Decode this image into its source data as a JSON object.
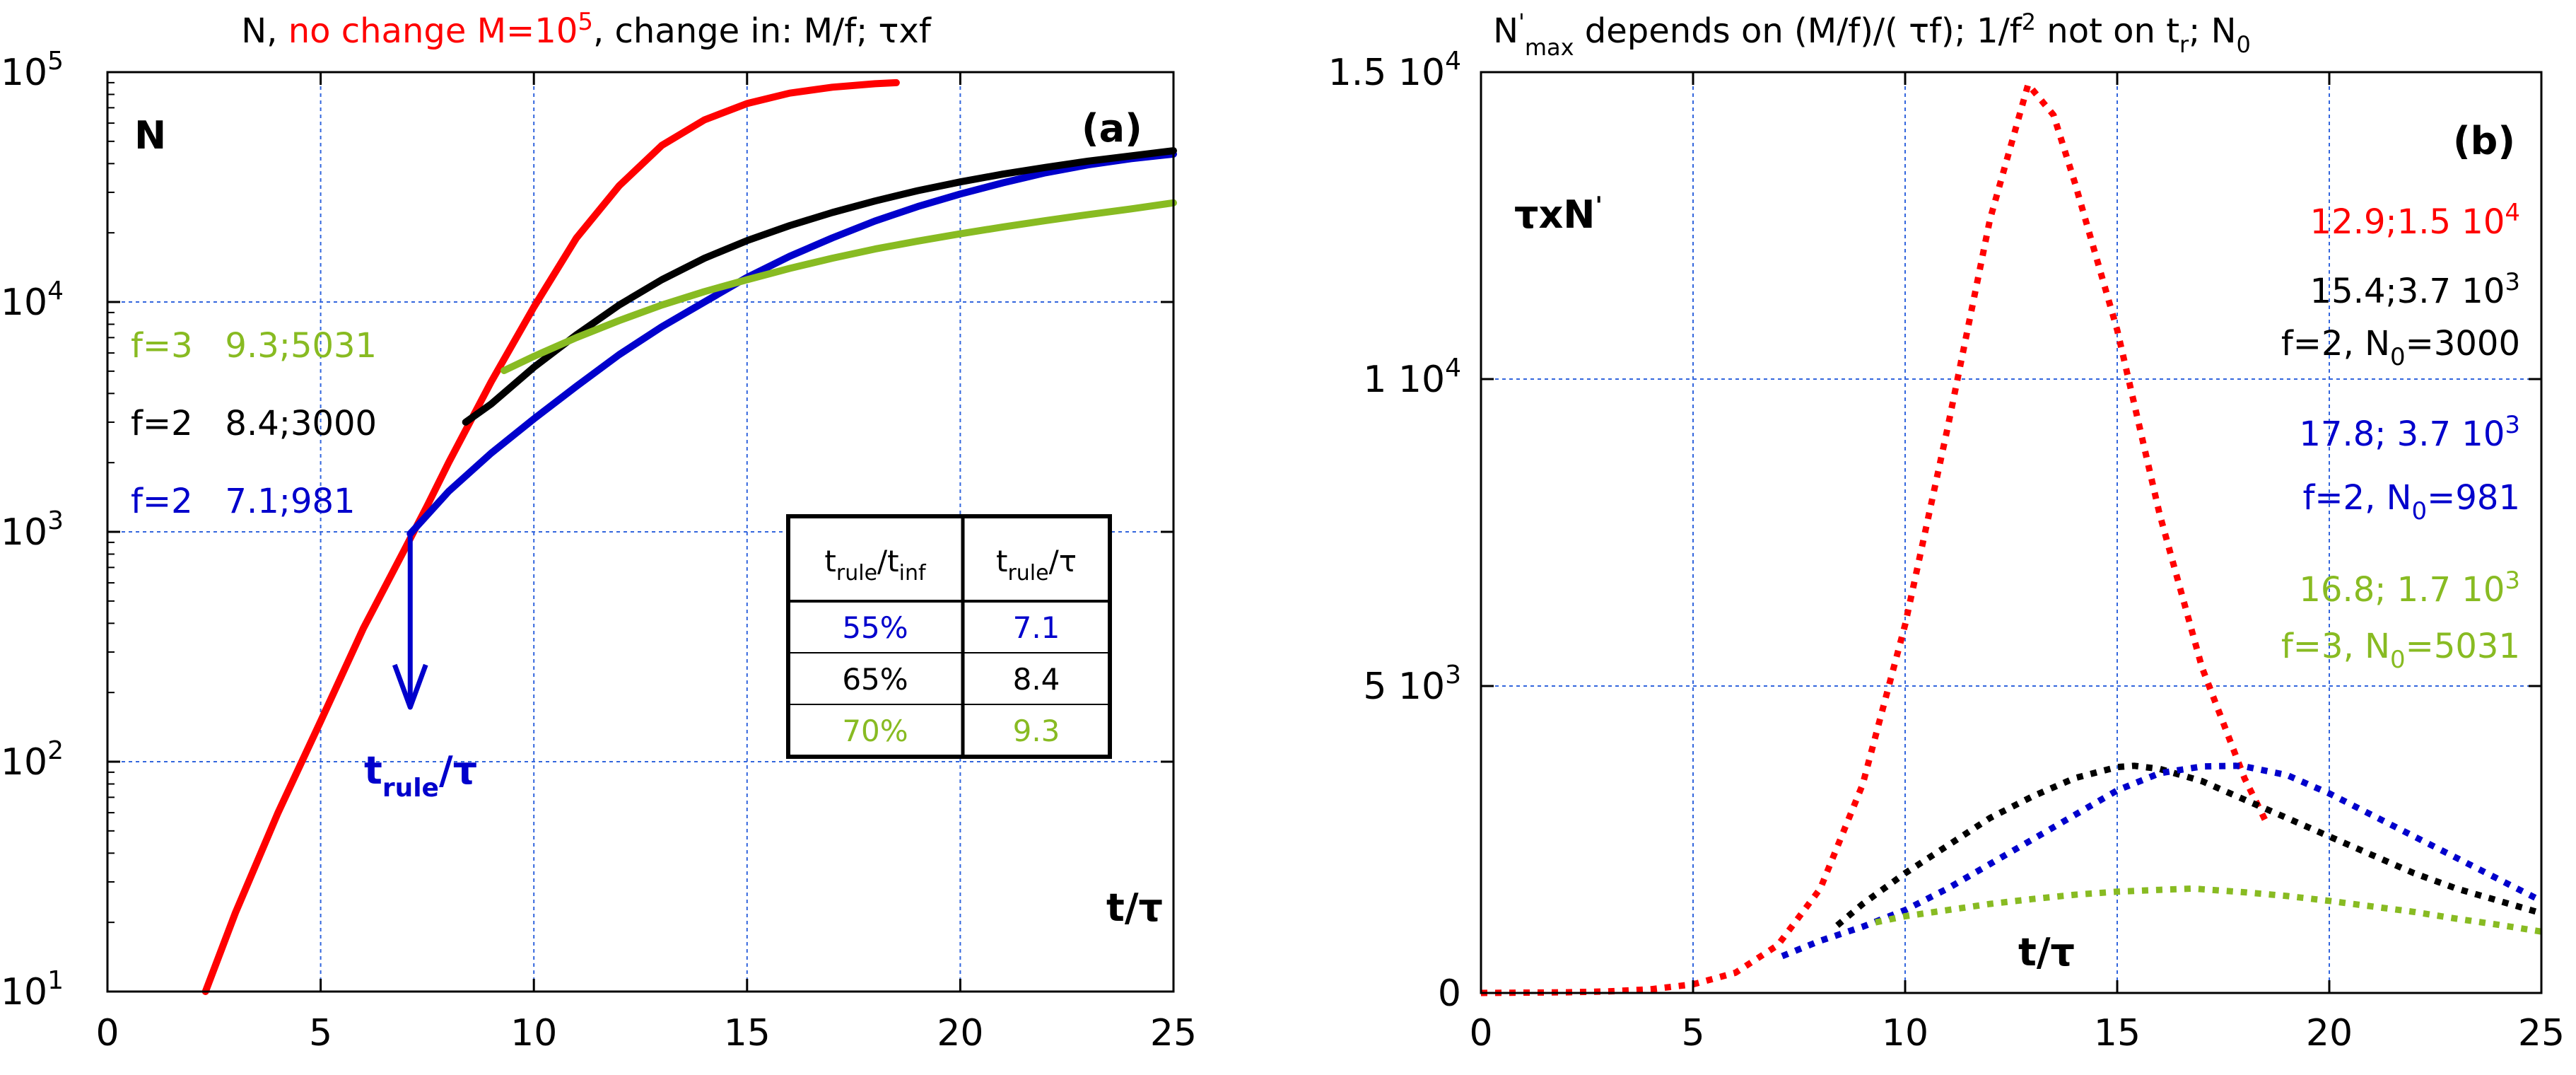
{
  "chart_data": [
    {
      "id": "a",
      "type": "line",
      "panel_label": "(a)",
      "title": {
        "prefix": "N,",
        "highlight": "no change M=10",
        "highlight_sup": "5",
        "rest": ", change in: M/f; τxf"
      },
      "title_color": "#000000",
      "highlight_color": "#ff0000",
      "ylabel": "N",
      "xlabel": "t/τ",
      "xlim": [
        0,
        25
      ],
      "ylim": [
        10,
        100000
      ],
      "yscale": "log",
      "xticks": [
        0,
        5,
        10,
        15,
        20,
        25
      ],
      "yticks": [
        {
          "base": "10",
          "sup": "1"
        },
        {
          "base": "10",
          "sup": "2"
        },
        {
          "base": "10",
          "sup": "3"
        },
        {
          "base": "10",
          "sup": "4"
        },
        {
          "base": "10",
          "sup": "5"
        }
      ],
      "ytick_values": [
        10,
        100,
        1000,
        10000,
        100000
      ],
      "grid": true,
      "series": [
        {
          "name": "M=10^5 (no change)",
          "color": "#ff0000",
          "x": [
            2.3,
            3,
            4,
            5,
            6,
            7,
            7.5,
            8,
            9,
            10,
            11,
            12,
            13,
            14,
            15,
            16,
            17,
            18,
            18.5
          ],
          "y": [
            10,
            22,
            60,
            150,
            380,
            860,
            1300,
            2000,
            4500,
            9500,
            19000,
            32000,
            48000,
            62000,
            73000,
            81000,
            86000,
            89000,
            90000
          ]
        },
        {
          "name": "f=2 7.1;981",
          "color": "#0000cc",
          "x": [
            7.1,
            8,
            9,
            10,
            11,
            12,
            13,
            14,
            15,
            16,
            17,
            18,
            19,
            20,
            21,
            22,
            23,
            24,
            25
          ],
          "y": [
            981,
            1500,
            2200,
            3100,
            4300,
            5900,
            7800,
            10000,
            12800,
            15800,
            19000,
            22500,
            26000,
            29500,
            33000,
            36500,
            39500,
            42000,
            44000
          ]
        },
        {
          "name": "f=2 8.4;3000",
          "color": "#000000",
          "x": [
            8.4,
            9,
            10,
            11,
            12,
            13,
            14,
            15,
            16,
            17,
            18,
            19,
            20,
            21,
            22,
            23,
            24,
            25
          ],
          "y": [
            3000,
            3600,
            5200,
            7200,
            9700,
            12500,
            15500,
            18500,
            21500,
            24500,
            27500,
            30500,
            33300,
            36000,
            38500,
            41000,
            43200,
            45500
          ]
        },
        {
          "name": "f=3 9.3;5031",
          "color": "#88bb22",
          "x": [
            9.3,
            10,
            11,
            12,
            13,
            14,
            15,
            16,
            17,
            18,
            19,
            20,
            21,
            22,
            23,
            24,
            25
          ],
          "y": [
            5031,
            5800,
            7000,
            8300,
            9700,
            11100,
            12500,
            14000,
            15500,
            17000,
            18400,
            19800,
            21200,
            22600,
            24000,
            25400,
            27000
          ]
        }
      ],
      "annotations": [
        {
          "text": "f=3   9.3;5031",
          "color": "#88bb22"
        },
        {
          "text": "f=2   8.4;3000",
          "color": "#000000"
        },
        {
          "text": "f=2   7.1;981",
          "color": "#0000cc"
        }
      ],
      "arrow": {
        "x": 7.1,
        "label_main": "t",
        "label_sub": "rule",
        "label_tail": "/τ",
        "color": "#0000cc"
      },
      "table": {
        "headers": [
          {
            "main": "t",
            "sub": "rule",
            "mid": "/t",
            "sub2": "inf"
          },
          {
            "main": "t",
            "sub": "rule",
            "mid": "/τ",
            "sub2": ""
          }
        ],
        "rows": [
          {
            "c1": "55%",
            "c2": "7.1",
            "color": "#0000cc"
          },
          {
            "c1": "65%",
            "c2": "8.4",
            "color": "#000000"
          },
          {
            "c1": "70%",
            "c2": "9.3",
            "color": "#88bb22"
          }
        ]
      }
    },
    {
      "id": "b",
      "type": "line",
      "panel_label": "(b)",
      "title": {
        "n": "N",
        "n_sup": "'",
        "n_sub": "max",
        "mid": " depends on (M/f)/( τf); 1/f",
        "f_sup": "2",
        "mid2": " not on t",
        "r_sub": "r",
        "end": "; N",
        "zero_sub": "0"
      },
      "ylabel": {
        "main": "τxN",
        "sup": "'"
      },
      "xlabel": "t/τ",
      "xlim": [
        0,
        25
      ],
      "ylim": [
        0,
        15000
      ],
      "yscale": "linear",
      "xticks": [
        0,
        5,
        10,
        15,
        20,
        25
      ],
      "yticks": [
        {
          "value": 0,
          "label": "0"
        },
        {
          "value": 5000,
          "label": "5 10",
          "sup": "3"
        },
        {
          "value": 10000,
          "label": "1 10",
          "sup": "4"
        },
        {
          "value": 15000,
          "label": "1.5 10",
          "sup": "4"
        }
      ],
      "grid": true,
      "series": [
        {
          "name": "M=10^5",
          "color": "#ff0000",
          "x": [
            0,
            2,
            3,
            4,
            5,
            6,
            7,
            8,
            9,
            10,
            11,
            12,
            12.9,
            13.5,
            14,
            15,
            16,
            17,
            18,
            18.5
          ],
          "y": [
            0,
            10,
            25,
            60,
            140,
            330,
            780,
            1700,
            3400,
            6000,
            9200,
            12600,
            14800,
            14300,
            13200,
            10800,
            7800,
            5300,
            3500,
            2800
          ]
        },
        {
          "name": "f=2 N0=3000",
          "color": "#000000",
          "x": [
            8.4,
            9,
            10,
            11,
            12,
            13,
            14,
            15,
            15.4,
            16,
            17,
            18,
            19,
            20,
            21,
            22,
            23,
            24,
            25
          ],
          "y": [
            1100,
            1450,
            1950,
            2400,
            2850,
            3200,
            3500,
            3680,
            3700,
            3650,
            3450,
            3150,
            2850,
            2550,
            2250,
            1950,
            1700,
            1500,
            1300
          ]
        },
        {
          "name": "f=2 N0=981",
          "color": "#0000cc",
          "x": [
            7.1,
            8,
            9,
            10,
            11,
            12,
            13,
            14,
            15,
            16,
            17,
            17.8,
            18,
            19,
            20,
            21,
            22,
            23,
            24,
            25
          ],
          "y": [
            600,
            850,
            1080,
            1350,
            1700,
            2100,
            2500,
            2900,
            3300,
            3580,
            3690,
            3700,
            3690,
            3550,
            3250,
            2900,
            2550,
            2200,
            1850,
            1500
          ]
        },
        {
          "name": "f=3 N0=5031",
          "color": "#88bb22",
          "x": [
            9.3,
            10,
            11,
            12,
            13,
            14,
            15,
            16,
            16.8,
            17,
            18,
            19,
            20,
            21,
            22,
            23,
            24,
            25
          ],
          "y": [
            1150,
            1250,
            1350,
            1450,
            1530,
            1600,
            1650,
            1680,
            1700,
            1690,
            1640,
            1580,
            1500,
            1410,
            1320,
            1210,
            1110,
            1000
          ]
        }
      ],
      "annotations": [
        {
          "text": "12.9;1.5 10",
          "sup": "4",
          "color": "#ff0000"
        },
        {
          "text": "15.4;3.7 10",
          "sup": "3",
          "color": "#000000"
        },
        {
          "text": "f=2, N",
          "sub": "0",
          "tail": "=3000",
          "color": "#000000"
        },
        {
          "text": "17.8; 3.7 10",
          "sup": "3",
          "color": "#0000cc"
        },
        {
          "text": "f=2, N",
          "sub": "0",
          "tail": "=981",
          "color": "#0000cc"
        },
        {
          "text": "16.8; 1.7 10",
          "sup": "3",
          "color": "#88bb22"
        },
        {
          "text": "f=3, N",
          "sub": "0",
          "tail": "=5031",
          "color": "#88bb22"
        }
      ]
    }
  ]
}
